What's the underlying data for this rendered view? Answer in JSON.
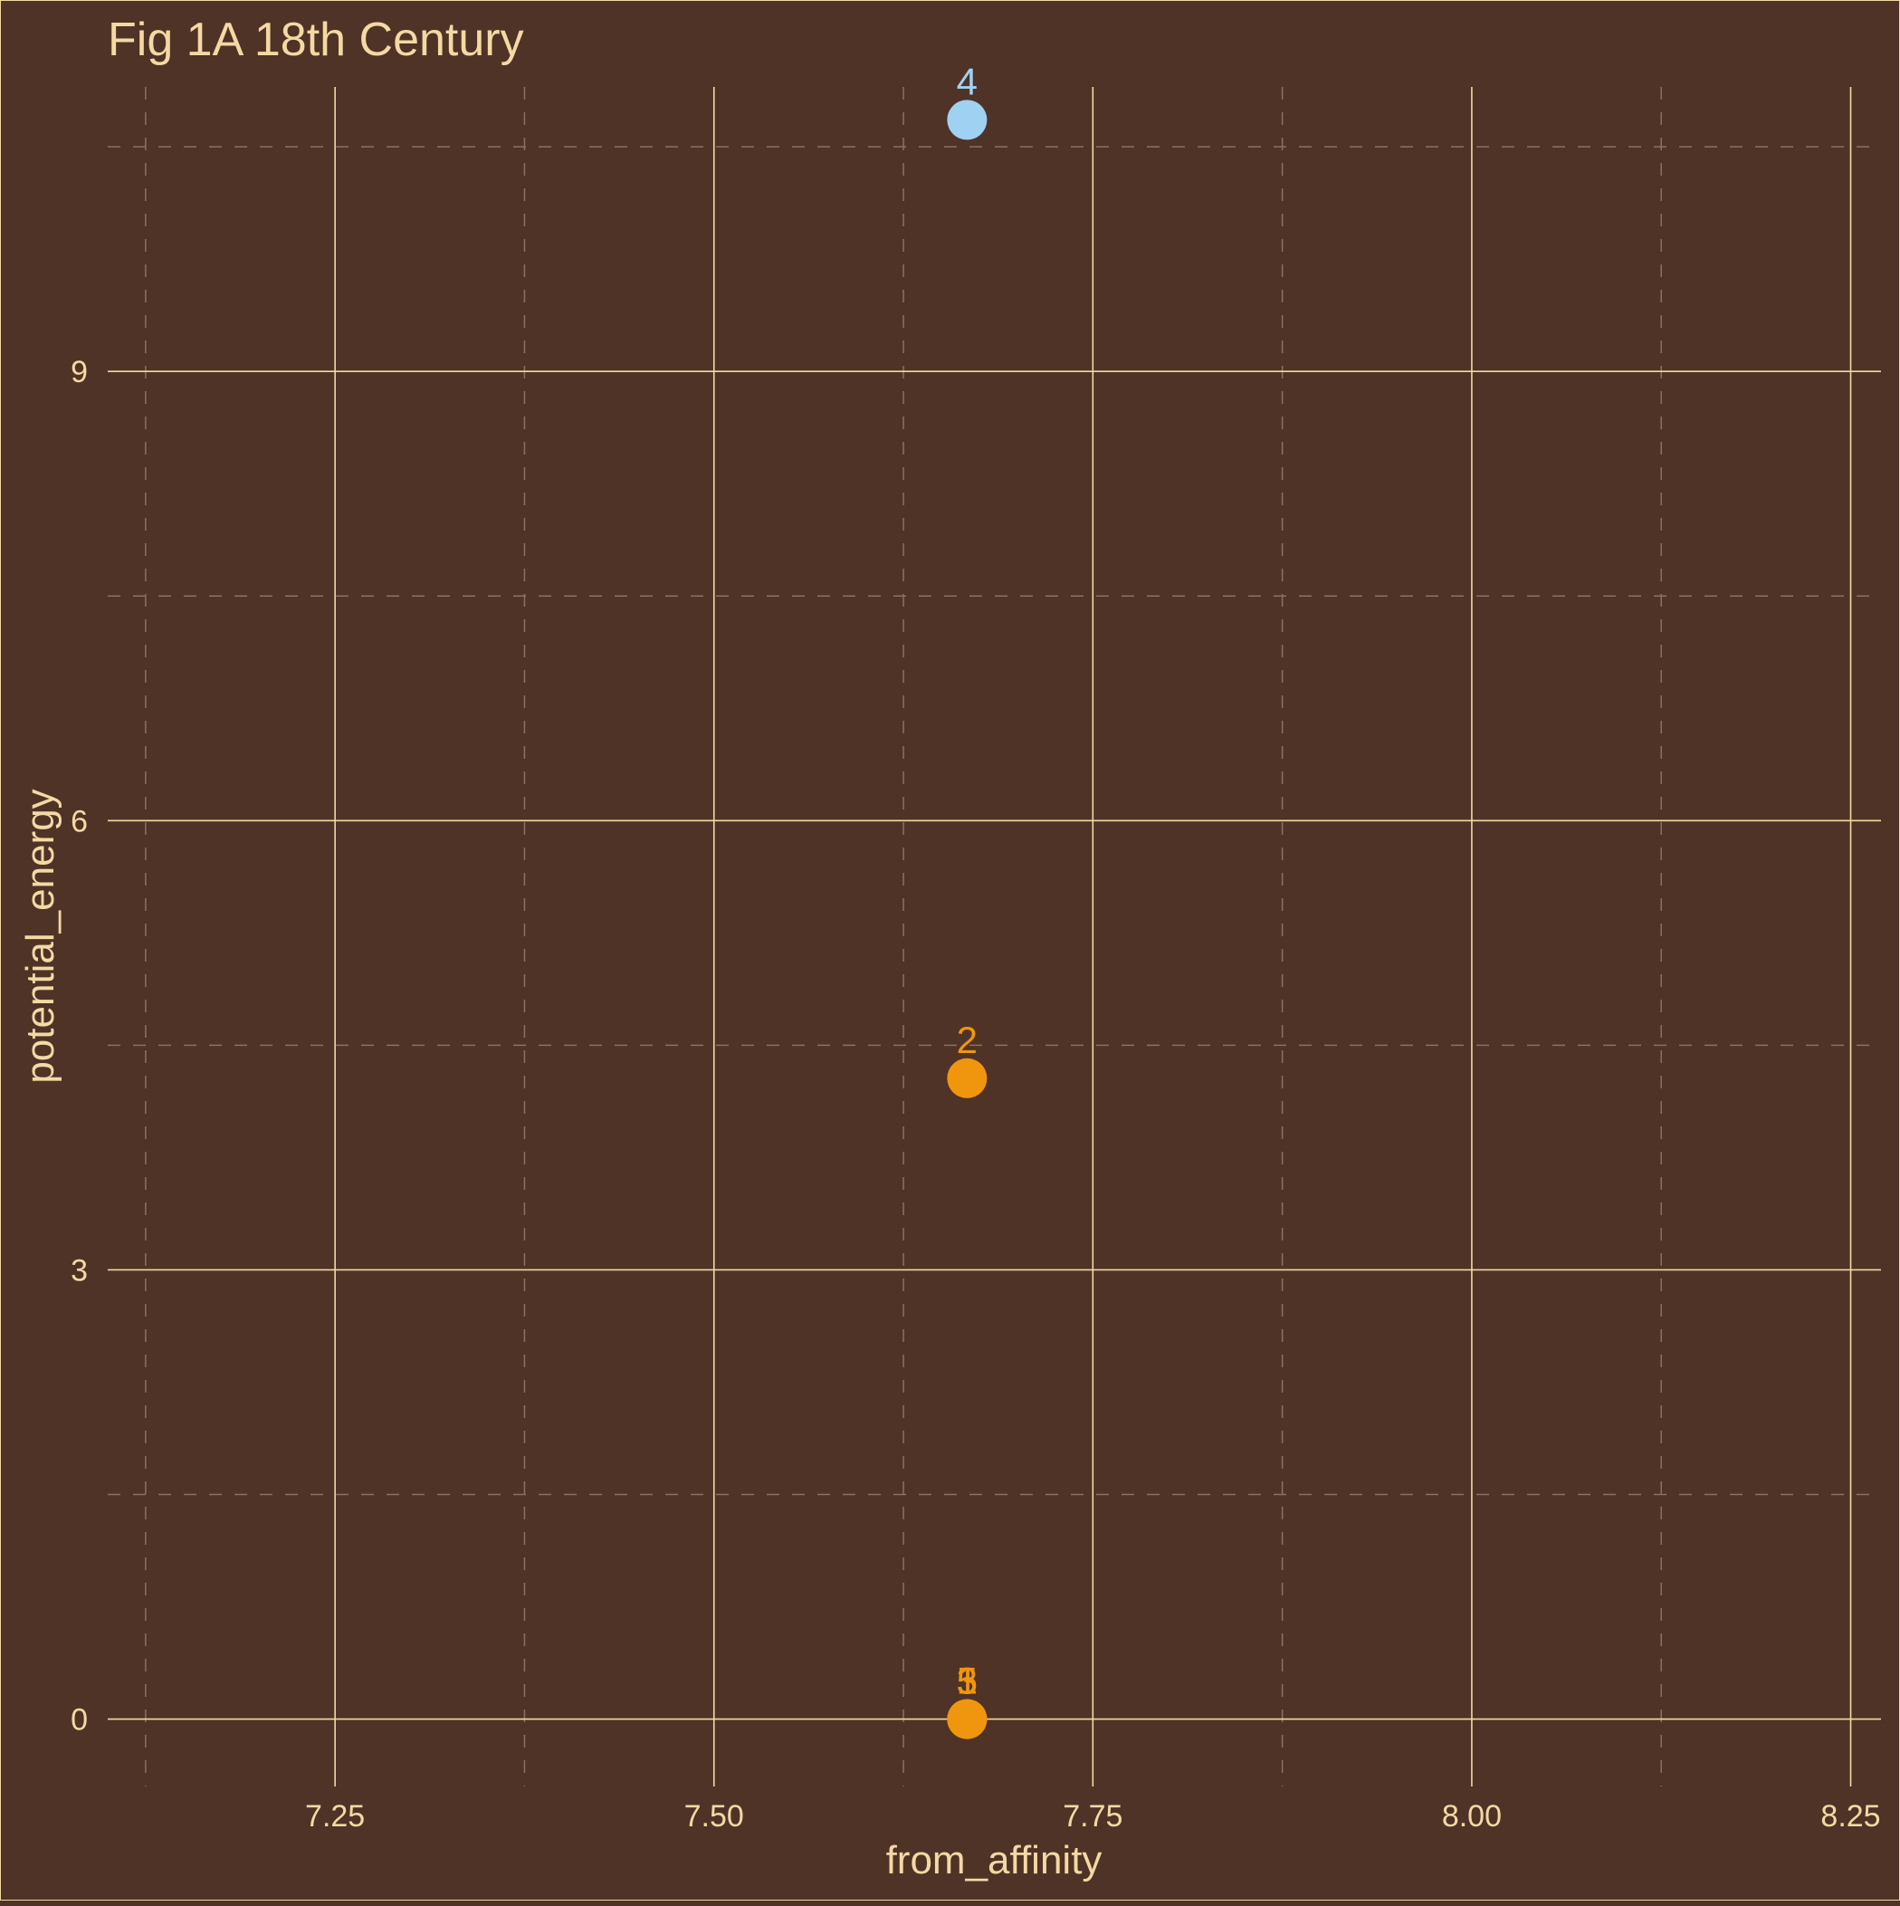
{
  "chart_data": {
    "type": "scatter",
    "title": "Fig 1A 18th Century",
    "xlabel": "from_affinity",
    "ylabel": "potential_energy",
    "xlim": [
      7.1,
      8.27
    ],
    "ylim": [
      -0.45,
      10.9
    ],
    "x_ticks": [
      7.25,
      7.5,
      7.75,
      8.0,
      8.25
    ],
    "x_tick_labels": [
      "7.25",
      "7.50",
      "7.75",
      "8.00",
      "8.25"
    ],
    "y_ticks": [
      0,
      3,
      6,
      9
    ],
    "y_tick_labels": [
      "0",
      "3",
      "6",
      "9"
    ],
    "x_minor_ticks": [
      7.125,
      7.375,
      7.625,
      7.875,
      8.125
    ],
    "y_minor_ticks": [
      1.5,
      4.5,
      7.5,
      10.5
    ],
    "grid": true,
    "minor_grid_dashed": true,
    "points": [
      {
        "label": "1",
        "x": 7.667,
        "y": 0.0,
        "color": "#f0960e"
      },
      {
        "label": "3",
        "x": 7.667,
        "y": 0.0,
        "color": "#f0960e"
      },
      {
        "label": "5",
        "x": 7.667,
        "y": 0.0,
        "color": "#f0960e"
      },
      {
        "label": "2",
        "x": 7.667,
        "y": 4.28,
        "color": "#f0960e"
      },
      {
        "label": "4",
        "x": 7.667,
        "y": 10.68,
        "color": "#9fd1f2"
      }
    ],
    "colors": {
      "background": "#4f3327",
      "text": "#f4d9a4",
      "major_grid": "#f4d9a4",
      "minor_grid": "#8a7260"
    }
  }
}
